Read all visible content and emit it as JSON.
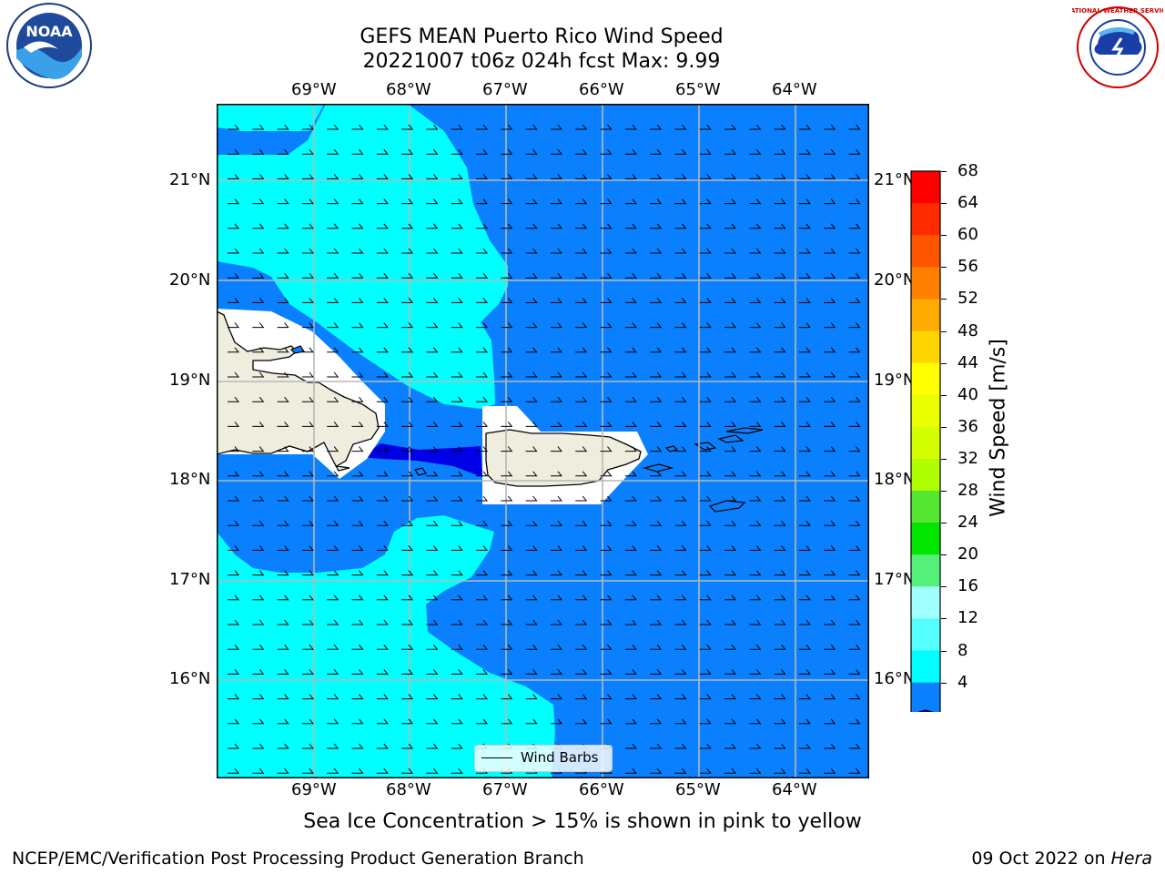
{
  "title": {
    "line1": "GEFS MEAN Puerto Rico Wind Speed",
    "line2": "20221007 t06z 024h fcst   Max: 9.99"
  },
  "map": {
    "lon_ticks": [
      "69°W",
      "68°W",
      "67°W",
      "66°W",
      "65°W",
      "64°W"
    ],
    "lat_ticks": [
      "21°N",
      "20°N",
      "19°N",
      "18°N",
      "17°N",
      "16°N"
    ],
    "legend_label": "Wind Barbs",
    "colors": {
      "ocean_4_8": "#0a80ff",
      "ocean_8_12": "#00ffff",
      "below_4": "#0000e6",
      "land": "#efedde",
      "grid": "#b8b8b8"
    }
  },
  "colorbar": {
    "label": "Wind Speed [m/s]",
    "ticks": [
      "68",
      "64",
      "60",
      "56",
      "52",
      "48",
      "44",
      "40",
      "36",
      "32",
      "28",
      "24",
      "20",
      "16",
      "12",
      "8",
      "4"
    ],
    "colors": [
      "#ff0000",
      "#ff2a00",
      "#ff5500",
      "#ff8000",
      "#ffaa00",
      "#ffd500",
      "#ffff00",
      "#eaff00",
      "#d4ff00",
      "#b0ff00",
      "#55e632",
      "#00e600",
      "#55f07a",
      "#a0ffff",
      "#55ffff",
      "#00ffff",
      "#0a80ff"
    ],
    "under_color": "#0000e6"
  },
  "caption": "Sea Ice Concentration > 15% is shown in pink to yellow",
  "footer": {
    "left": "NCEP/EMC/Verification Post Processing Product Generation Branch",
    "date": "09 Oct 2022 on ",
    "host": "Hera"
  },
  "logos": {
    "noaa_text": "NOAA",
    "nws_text": "NATIONAL WEATHER SERVICE"
  }
}
